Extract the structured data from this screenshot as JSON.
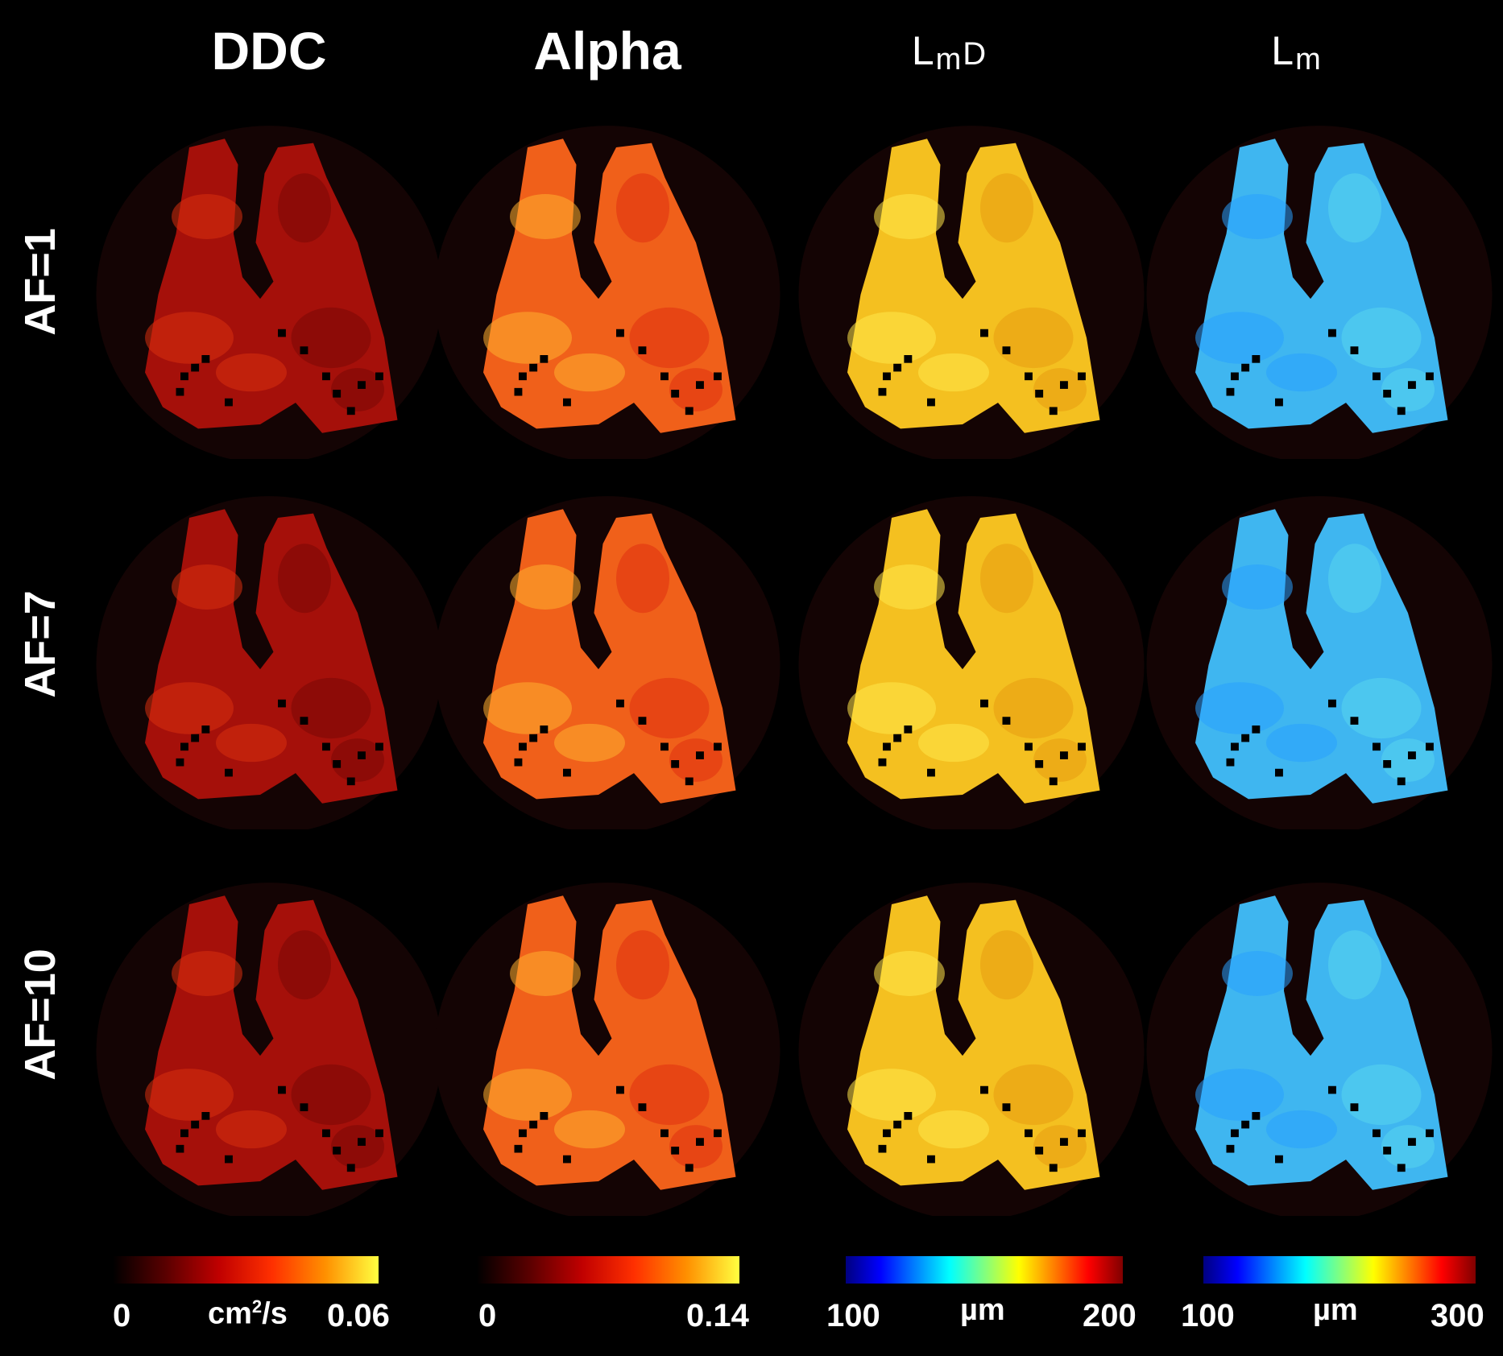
{
  "columns": [
    {
      "key": "ddc",
      "title": "DDC"
    },
    {
      "key": "alpha",
      "title": "Alpha"
    },
    {
      "key": "lmd",
      "title_main": "L",
      "title_sub": "m",
      "title_suffix": "D"
    },
    {
      "key": "lm",
      "title_main": "L",
      "title_sub": "m"
    }
  ],
  "rows": [
    {
      "label": "AF=1"
    },
    {
      "label": "AF=7"
    },
    {
      "label": "AF=10"
    }
  ],
  "colorbars": [
    {
      "key": "ddc",
      "min": "0",
      "unit_main": "cm",
      "unit_sup": "2",
      "unit_suffix": "/s",
      "max": "0.06",
      "colormap": "hot"
    },
    {
      "key": "alpha",
      "min": "0",
      "unit": "",
      "max": "0.14",
      "colormap": "hot"
    },
    {
      "key": "lmd",
      "min": "100",
      "unit": "µm",
      "max": "200",
      "colormap": "jet"
    },
    {
      "key": "lm",
      "min": "100",
      "unit": "µm",
      "max": "300",
      "colormap": "jet"
    }
  ],
  "colors": {
    "ddc_fill": "#a5100a",
    "alpha_fill": "#f0601a",
    "lmd_fill": "#f4c020",
    "lm_fill": "#3fb6f0",
    "background": "#000000"
  }
}
